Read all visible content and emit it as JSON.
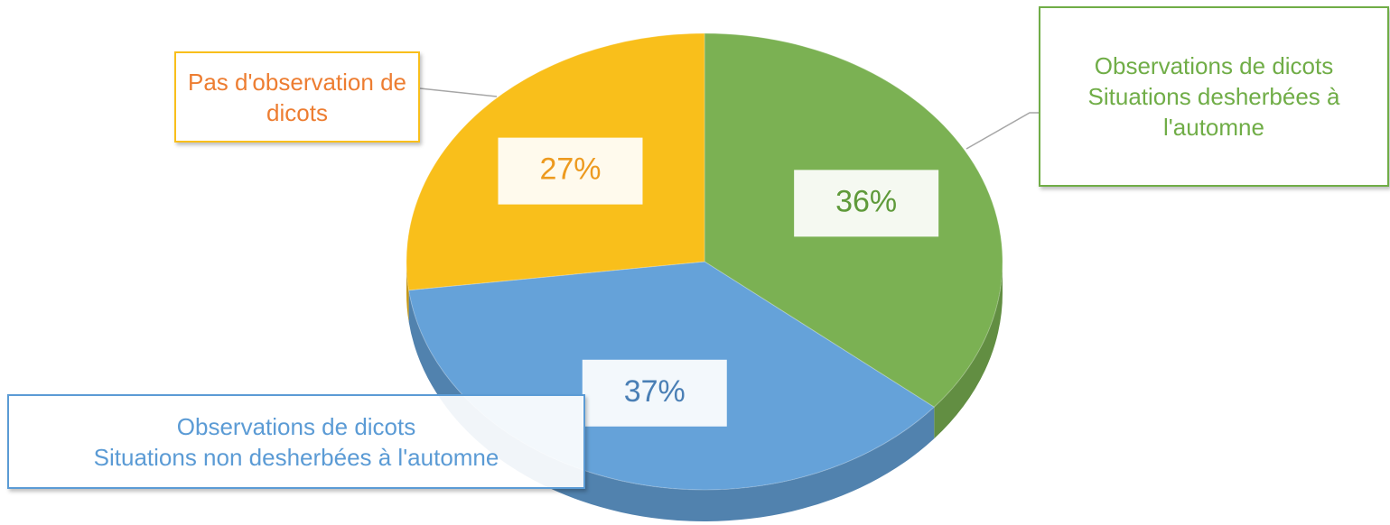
{
  "chart_data": {
    "type": "pie",
    "categories": [
      "Observations de dicots\nSituations desherbées à l'automne",
      "Observations de dicots\nSituations non desherbées à l'automne",
      "Pas d'observation de dicots"
    ],
    "values": [
      36,
      37,
      27
    ],
    "value_labels": [
      "36%",
      "37%",
      "27%"
    ],
    "colors": [
      "#7bb153",
      "#65a2d9",
      "#f9bf1b"
    ]
  }
}
